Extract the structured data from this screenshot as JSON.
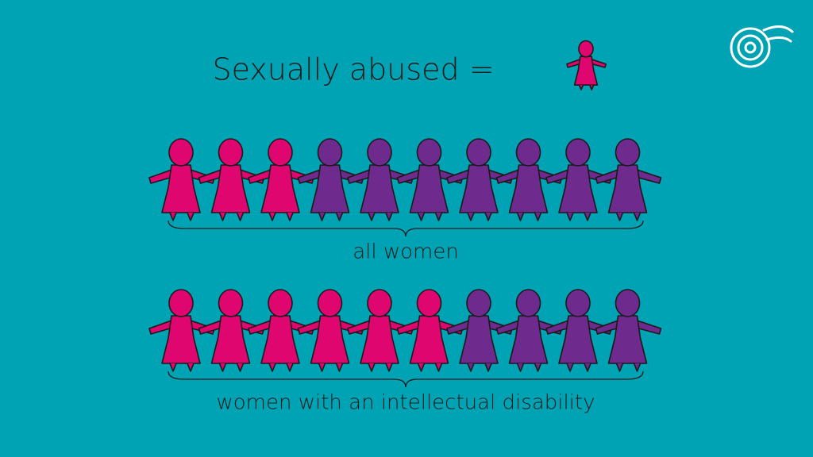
{
  "chart_data": {
    "type": "pictogram",
    "title": "Sexually abused =",
    "categories": [
      "all women",
      "women with an intellectual disability"
    ],
    "values": [
      3,
      6
    ],
    "total": 10,
    "color": "#e0066f",
    "rest_color": "#6e2a8c",
    "background": "#00a3b4"
  }
}
